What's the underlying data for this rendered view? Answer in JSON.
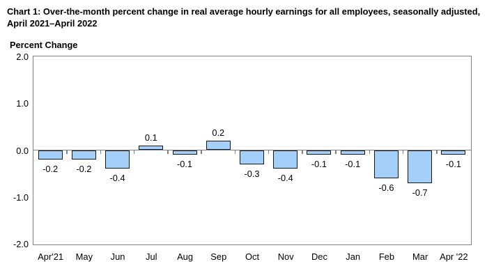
{
  "chart_data": {
    "type": "bar",
    "title": "Chart 1: Over-the-month percent change in real average hourly earnings for all employees, seasonally adjusted, April 2021–April 2022",
    "ylabel": "Percent Change",
    "categories": [
      "Apr'21",
      "May",
      "Jun",
      "Jul",
      "Aug",
      "Sep",
      "Oct",
      "Nov",
      "Dec",
      "Jan",
      "Feb",
      "Mar",
      "Apr '22"
    ],
    "values": [
      -0.2,
      -0.2,
      -0.4,
      0.1,
      -0.1,
      0.2,
      -0.3,
      -0.4,
      -0.1,
      -0.1,
      -0.6,
      -0.7,
      -0.1
    ],
    "ylim": [
      -2.0,
      2.0
    ],
    "ytick_labels": [
      "2.0",
      "1.0",
      "0.0",
      "-1.0",
      "-2.0"
    ],
    "grid": false,
    "legend": "none",
    "data_labels": "outside-end",
    "colors": {
      "bar_fill": "#A3CFF8",
      "bar_border": "#15181d",
      "axis_frame": "#808080",
      "text": "#000000"
    }
  }
}
